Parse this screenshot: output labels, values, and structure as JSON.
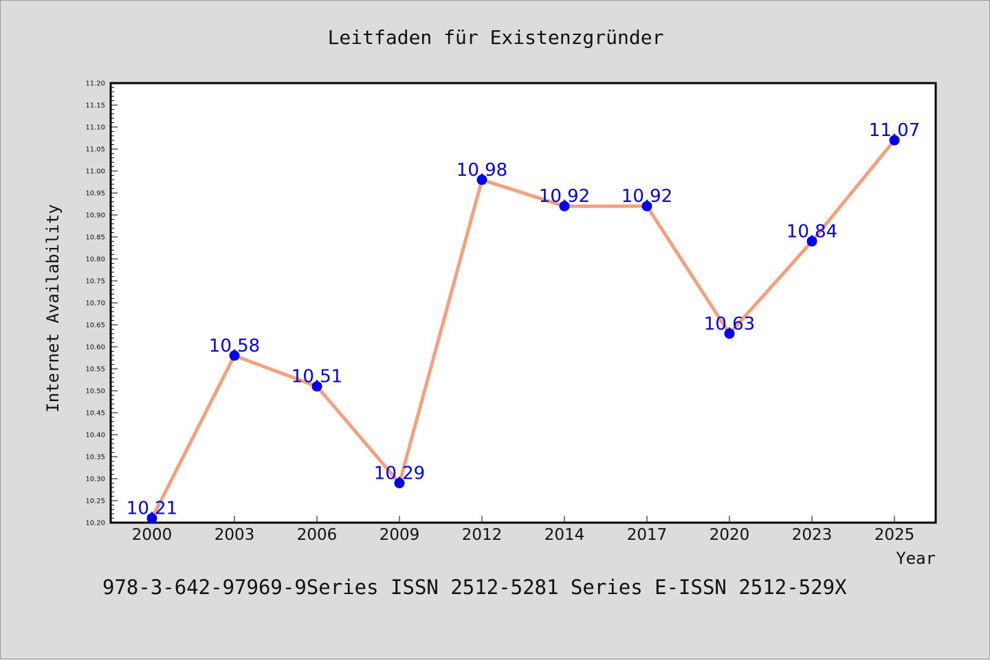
{
  "chart_data": {
    "type": "line",
    "title": "Leitfaden für Existenzgründer",
    "xlabel": "Year",
    "ylabel": "Internet Availability",
    "footer": "978-3-642-97969-9Series ISSN 2512-5281 Series E-ISSN 2512-529X",
    "categories": [
      "2000",
      "2003",
      "2006",
      "2009",
      "2012",
      "2014",
      "2017",
      "2020",
      "2023",
      "2025"
    ],
    "series": [
      {
        "values": [
          10.21,
          10.58,
          10.51,
          10.29,
          10.98,
          10.92,
          10.92,
          10.63,
          10.84,
          11.07
        ]
      }
    ],
    "data_labels": [
      "10.21",
      "10.58",
      "10.51",
      "10.29",
      "10.98",
      "10.92",
      "10.92",
      "10.63",
      "10.84",
      "11.07"
    ],
    "ylim": [
      10.2,
      11.2
    ],
    "yticks": [
      "10.20",
      "10.25",
      "10.30",
      "10.35",
      "10.40",
      "10.45",
      "10.50",
      "10.55",
      "10.60",
      "10.65",
      "10.70",
      "10.75",
      "10.80",
      "10.85",
      "10.90",
      "10.95",
      "11.00",
      "11.05",
      "11.10",
      "11.15",
      "11.20"
    ],
    "grid": false,
    "legend": "none",
    "colors": {
      "background": "#dcdcdc",
      "plot_background": "#ffffff",
      "line": "#f4a07e",
      "marker": "#0000ee",
      "data_label": "#0000ee",
      "axis": "#000000"
    }
  }
}
